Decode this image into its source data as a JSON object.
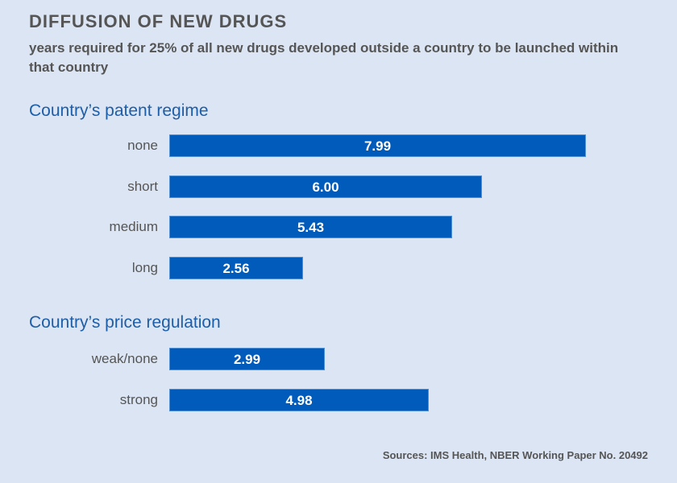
{
  "chart_data": {
    "type": "bar",
    "orientation": "horizontal",
    "title": "DIFFUSION OF NEW DRUGS",
    "subtitle": "years required for 25% of all new drugs developed outside a country to be launched within that country",
    "xlabel": "",
    "ylabel": "",
    "grid": false,
    "legend": "none",
    "bar_color": "#005bbb",
    "groups": [
      {
        "name": "Country’s patent regime",
        "categories": [
          "none",
          "short",
          "medium",
          "long"
        ],
        "values": [
          7.99,
          6.0,
          5.43,
          2.56
        ],
        "labels": [
          "7.99",
          "6.00",
          "5.43",
          "2.56"
        ]
      },
      {
        "name": "Country’s price regulation",
        "categories": [
          "weak/none",
          "strong"
        ],
        "values": [
          2.99,
          4.98
        ],
        "labels": [
          "2.99",
          "4.98"
        ]
      }
    ],
    "xlim": [
      0,
      8
    ],
    "source": "Sources: IMS Health, NBER Working Paper No. 20492"
  }
}
